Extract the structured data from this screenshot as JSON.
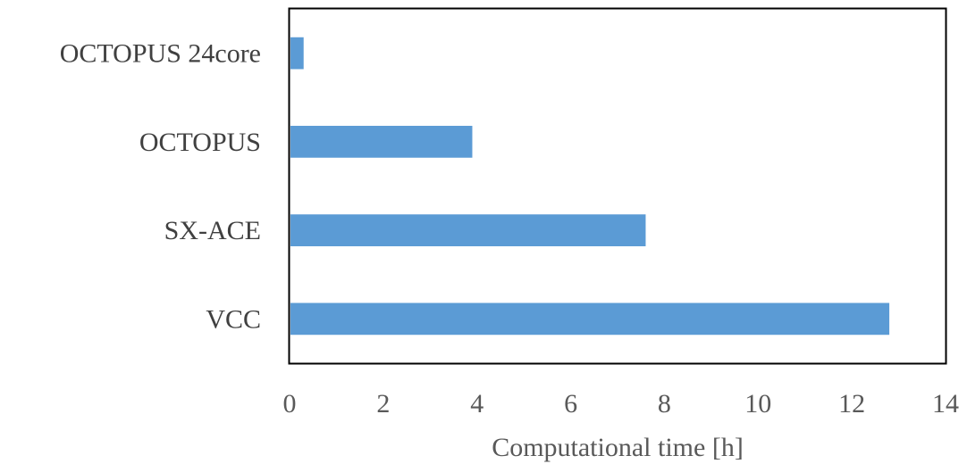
{
  "chart_data": {
    "type": "bar",
    "orientation": "horizontal",
    "categories": [
      "VCC",
      "SX-ACE",
      "OCTOPUS",
      "OCTOPUS 24core"
    ],
    "values": [
      12.8,
      7.6,
      3.9,
      0.3
    ],
    "xlabel": "Computational time [h]",
    "ylabel": "",
    "title": "",
    "xlim": [
      0,
      14
    ],
    "xticks": [
      0,
      2,
      4,
      6,
      8,
      10,
      12,
      14
    ],
    "grid": false,
    "legend": "none",
    "bar_color": "#5B9BD5",
    "frame_color": "#000000"
  }
}
